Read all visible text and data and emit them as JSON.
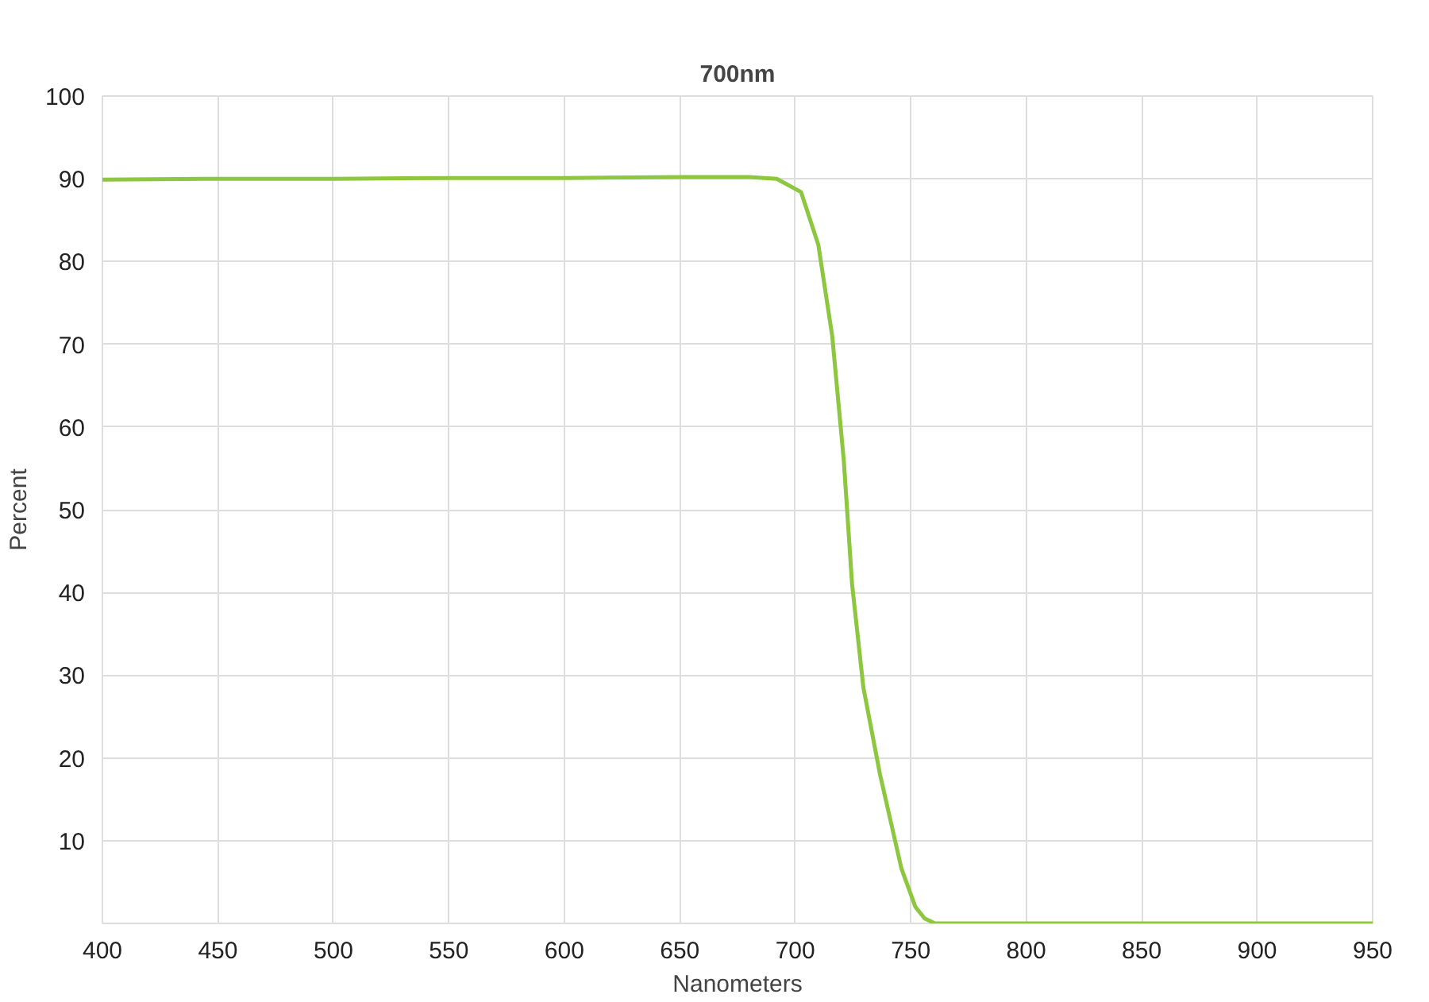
{
  "chart_data": {
    "type": "line",
    "title": "700nm",
    "xlabel": "Nanometers",
    "ylabel": "Percent",
    "series": [
      {
        "color": "#8dc63f",
        "x": [
          400,
          450,
          500,
          550,
          600,
          650,
          680,
          692,
          702.5,
          710,
          716,
          721,
          724.6,
          729.5,
          736.7,
          746,
          752,
          756,
          760.5,
          800,
          850,
          900,
          950
        ],
        "values": [
          89.9,
          90.0,
          90.0,
          90.1,
          90.1,
          90.2,
          90.2,
          90.0,
          88.4,
          82,
          71,
          56,
          41,
          28.5,
          18,
          6.6,
          2,
          0.6,
          0,
          0,
          0,
          0,
          0
        ]
      }
    ],
    "xlim": [
      400,
      950
    ],
    "ylim": [
      0,
      100
    ],
    "xticks": [
      400,
      450,
      500,
      550,
      600,
      650,
      700,
      750,
      800,
      850,
      900,
      950
    ],
    "yticks": [
      10,
      20,
      30,
      40,
      50,
      60,
      70,
      80,
      90,
      100
    ],
    "grid": true,
    "marker": "none",
    "line_style": "solid"
  }
}
